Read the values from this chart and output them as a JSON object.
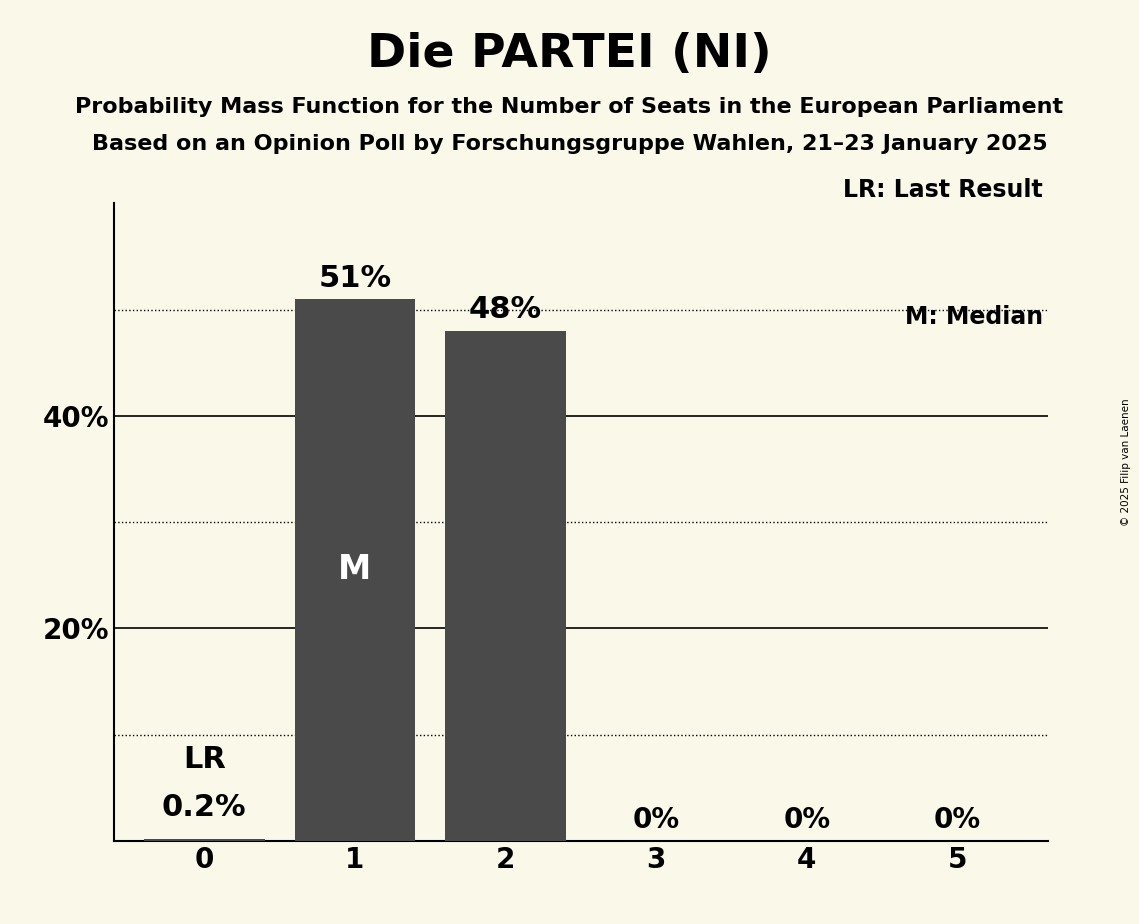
{
  "title": "Die PARTEI (NI)",
  "subtitle1": "Probability Mass Function for the Number of Seats in the European Parliament",
  "subtitle2": "Based on an Opinion Poll by Forschungsgruppe Wahlen, 21–23 January 2025",
  "copyright": "© 2025 Filip van Laenen",
  "seats": [
    0,
    1,
    2,
    3,
    4,
    5
  ],
  "probabilities": [
    0.002,
    0.51,
    0.48,
    0.0,
    0.0,
    0.0
  ],
  "bar_color": "#4a4a4a",
  "median_seats": [
    1
  ],
  "last_result_seats": [
    0
  ],
  "background_color": "#faf8e8",
  "median_label": "M",
  "legend_lr": "LR: Last Result",
  "legend_m": "M: Median",
  "ylim_max": 0.6,
  "dotted_lines": [
    0.1,
    0.3,
    0.5
  ],
  "solid_lines": [
    0.2,
    0.4
  ],
  "title_fontsize": 34,
  "subtitle_fontsize": 16,
  "tick_fontsize": 20,
  "bar_label_fontsize": 22,
  "median_label_fontsize": 24,
  "legend_fontsize": 17
}
